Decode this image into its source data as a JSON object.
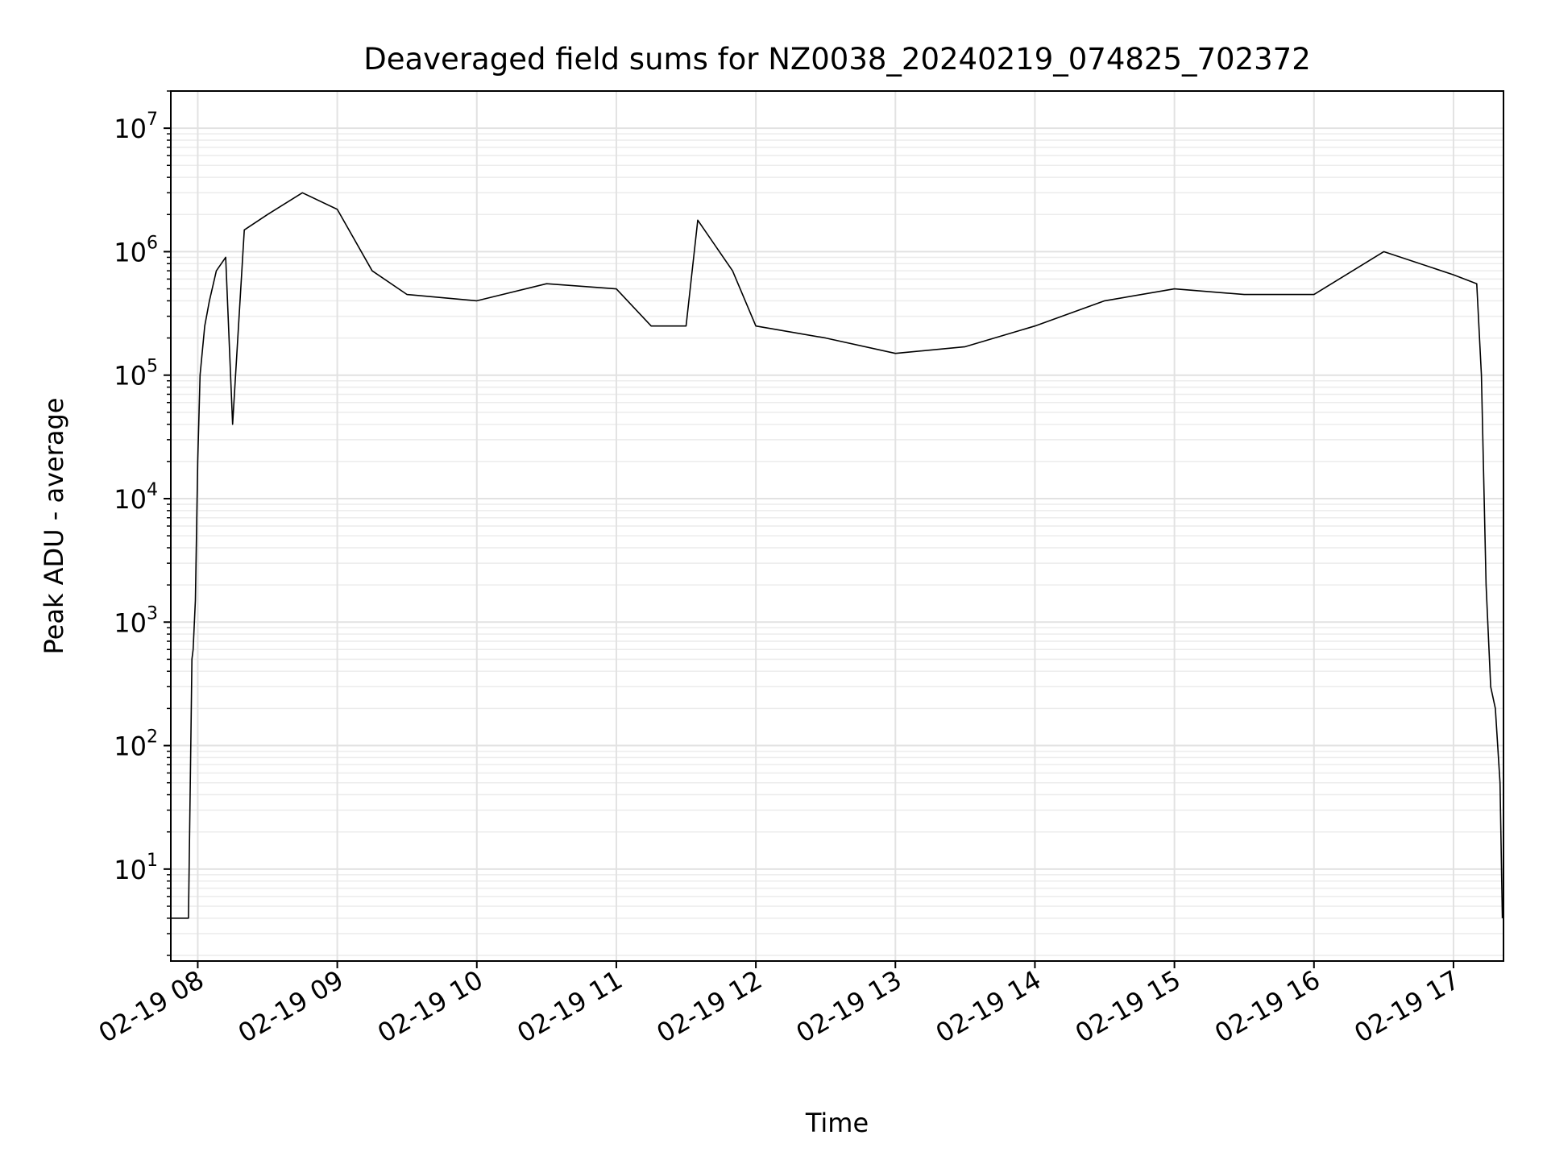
{
  "chart_data": {
    "type": "line",
    "title": "Deaveraged field sums for NZ0038_20240219_074825_702372",
    "xlabel": "Time",
    "ylabel": "Peak ADU - average",
    "yscale": "log",
    "ylim": [
      1.8,
      20000000
    ],
    "xlim": [
      "2024-02-19 07:48:25",
      "2024-02-19 17:21:30"
    ],
    "grid": true,
    "x_ticks": [
      "2024-02-19 08:00",
      "2024-02-19 09:00",
      "2024-02-19 10:00",
      "2024-02-19 11:00",
      "2024-02-19 12:00",
      "2024-02-19 13:00",
      "2024-02-19 14:00",
      "2024-02-19 15:00",
      "2024-02-19 16:00",
      "2024-02-19 17:00"
    ],
    "x_tick_labels": [
      "02-19 08",
      "02-19 09",
      "02-19 10",
      "02-19 11",
      "02-19 12",
      "02-19 13",
      "02-19 14",
      "02-19 15",
      "02-19 16",
      "02-19 17"
    ],
    "y_ticks": [
      {
        "value": 10,
        "base": "10",
        "exp": "1"
      },
      {
        "value": 100,
        "base": "10",
        "exp": "2"
      },
      {
        "value": 1000,
        "base": "10",
        "exp": "3"
      },
      {
        "value": 10000,
        "base": "10",
        "exp": "4"
      },
      {
        "value": 100000,
        "base": "10",
        "exp": "5"
      },
      {
        "value": 1000000,
        "base": "10",
        "exp": "6"
      },
      {
        "value": 10000000,
        "base": "10",
        "exp": "7"
      }
    ],
    "series": [
      {
        "color": "#000000",
        "points": [
          [
            "2024-02-19 07:48:30",
            4
          ],
          [
            "2024-02-19 07:52:00",
            4
          ],
          [
            "2024-02-19 07:56:00",
            4
          ],
          [
            "2024-02-19 07:57:00",
            100
          ],
          [
            "2024-02-19 07:57:30",
            500
          ],
          [
            "2024-02-19 07:58:00",
            600
          ],
          [
            "2024-02-19 07:59:00",
            1500
          ],
          [
            "2024-02-19 08:00:00",
            20000
          ],
          [
            "2024-02-19 08:01:00",
            100000
          ],
          [
            "2024-02-19 08:03:00",
            250000
          ],
          [
            "2024-02-19 08:05:00",
            400000
          ],
          [
            "2024-02-19 08:08:00",
            700000
          ],
          [
            "2024-02-19 08:12:00",
            900000
          ],
          [
            "2024-02-19 08:15:00",
            40000
          ],
          [
            "2024-02-19 08:20:00",
            1500000
          ],
          [
            "2024-02-19 08:30:00",
            2000000
          ],
          [
            "2024-02-19 08:45:00",
            3000000
          ],
          [
            "2024-02-19 09:00:00",
            2200000
          ],
          [
            "2024-02-19 09:15:00",
            700000
          ],
          [
            "2024-02-19 09:30:00",
            450000
          ],
          [
            "2024-02-19 10:00:00",
            400000
          ],
          [
            "2024-02-19 10:30:00",
            550000
          ],
          [
            "2024-02-19 11:00:00",
            500000
          ],
          [
            "2024-02-19 11:15:00",
            250000
          ],
          [
            "2024-02-19 11:30:00",
            250000
          ],
          [
            "2024-02-19 11:35:00",
            1800000
          ],
          [
            "2024-02-19 11:50:00",
            700000
          ],
          [
            "2024-02-19 12:00:00",
            250000
          ],
          [
            "2024-02-19 12:30:00",
            200000
          ],
          [
            "2024-02-19 13:00:00",
            150000
          ],
          [
            "2024-02-19 13:30:00",
            170000
          ],
          [
            "2024-02-19 14:00:00",
            250000
          ],
          [
            "2024-02-19 14:30:00",
            400000
          ],
          [
            "2024-02-19 15:00:00",
            500000
          ],
          [
            "2024-02-19 15:30:00",
            450000
          ],
          [
            "2024-02-19 16:00:00",
            450000
          ],
          [
            "2024-02-19 16:30:00",
            1000000
          ],
          [
            "2024-02-19 17:00:00",
            650000
          ],
          [
            "2024-02-19 17:10:00",
            550000
          ],
          [
            "2024-02-19 17:12:00",
            100000
          ],
          [
            "2024-02-19 17:14:00",
            2000
          ],
          [
            "2024-02-19 17:16:00",
            300
          ],
          [
            "2024-02-19 17:18:00",
            200
          ],
          [
            "2024-02-19 17:19:00",
            100
          ],
          [
            "2024-02-19 17:20:00",
            50
          ],
          [
            "2024-02-19 17:21:00",
            4
          ]
        ]
      }
    ]
  }
}
